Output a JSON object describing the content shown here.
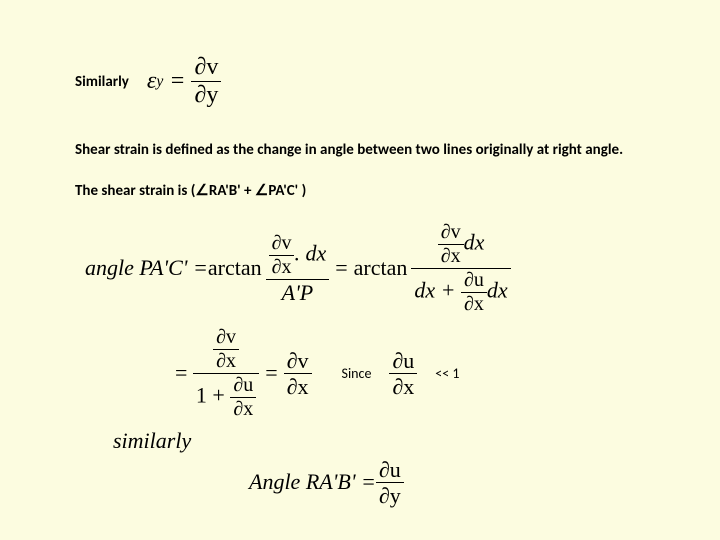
{
  "colors": {
    "background": "#fcfce0",
    "text": "#000000"
  },
  "line1": {
    "label": "Similarly",
    "eq": {
      "lhs_sym": "ε",
      "lhs_sub": "y",
      "num": "∂v",
      "den": "∂y"
    }
  },
  "para1": "Shear strain is defined as the change in angle between two  lines originally at right angle.",
  "para2": {
    "pre": "The shear strain is (",
    "ang": "∠",
    "t1": "RA'B' + ",
    "t2": "PA'C' )"
  },
  "bigeq": {
    "lhs": "angle  PA'C' = ",
    "arctan": "arctan",
    "frac1": {
      "num_l": "∂v",
      "num_r": "∂x",
      "num_dx": ". dx",
      "den": "A'P"
    },
    "eq": " = ",
    "frac2": {
      "num_inner_num": "∂v",
      "num_inner_den": "∂x",
      "num_dx": "dx",
      "den_dx": "dx + ",
      "den_inner_num": "∂u",
      "den_inner_den": "∂x",
      "den_dx2": "dx"
    }
  },
  "row2": {
    "lhs_inner_num": "∂v",
    "lhs_inner_den": "∂x",
    "lhs_den_1": "1 + ",
    "lhs_den_inner_num": "∂u",
    "lhs_den_inner_den": "∂x",
    "eq": " = ",
    "rhs_num": "∂v",
    "rhs_den": "∂x",
    "since": "Since",
    "cond_num": "∂u",
    "cond_den": "∂x",
    "tail": "<< 1"
  },
  "similarly2": "similarly",
  "final": {
    "lhs": "Angle  RA'B' = ",
    "num": "∂u",
    "den": "∂y"
  }
}
